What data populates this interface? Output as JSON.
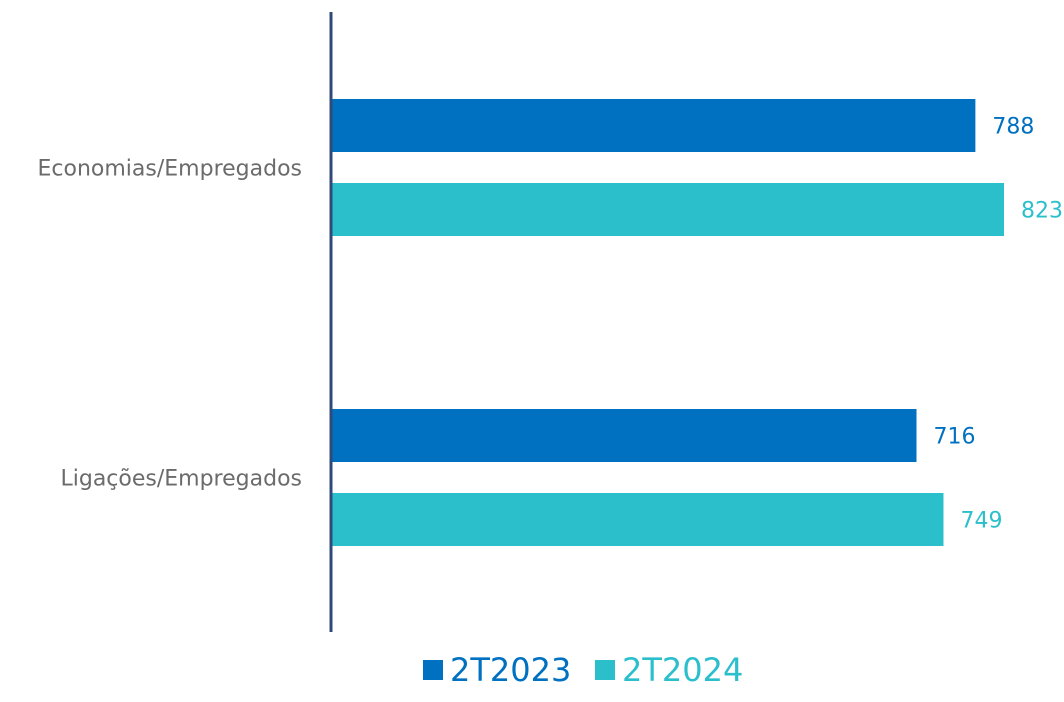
{
  "chart_data": {
    "type": "bar",
    "orientation": "horizontal",
    "categories": [
      "Economias/Empregados",
      "Ligações/Empregados"
    ],
    "series": [
      {
        "name": "2T2023",
        "values": [
          788,
          716
        ],
        "color": "#0070c0"
      },
      {
        "name": "2T2024",
        "values": [
          823,
          749
        ],
        "color": "#2bbfcc"
      }
    ],
    "xlim": [
      0,
      823
    ],
    "grid": false,
    "data_labels": true,
    "legend_position": "bottom",
    "axis_color": "#2f4a7a"
  }
}
